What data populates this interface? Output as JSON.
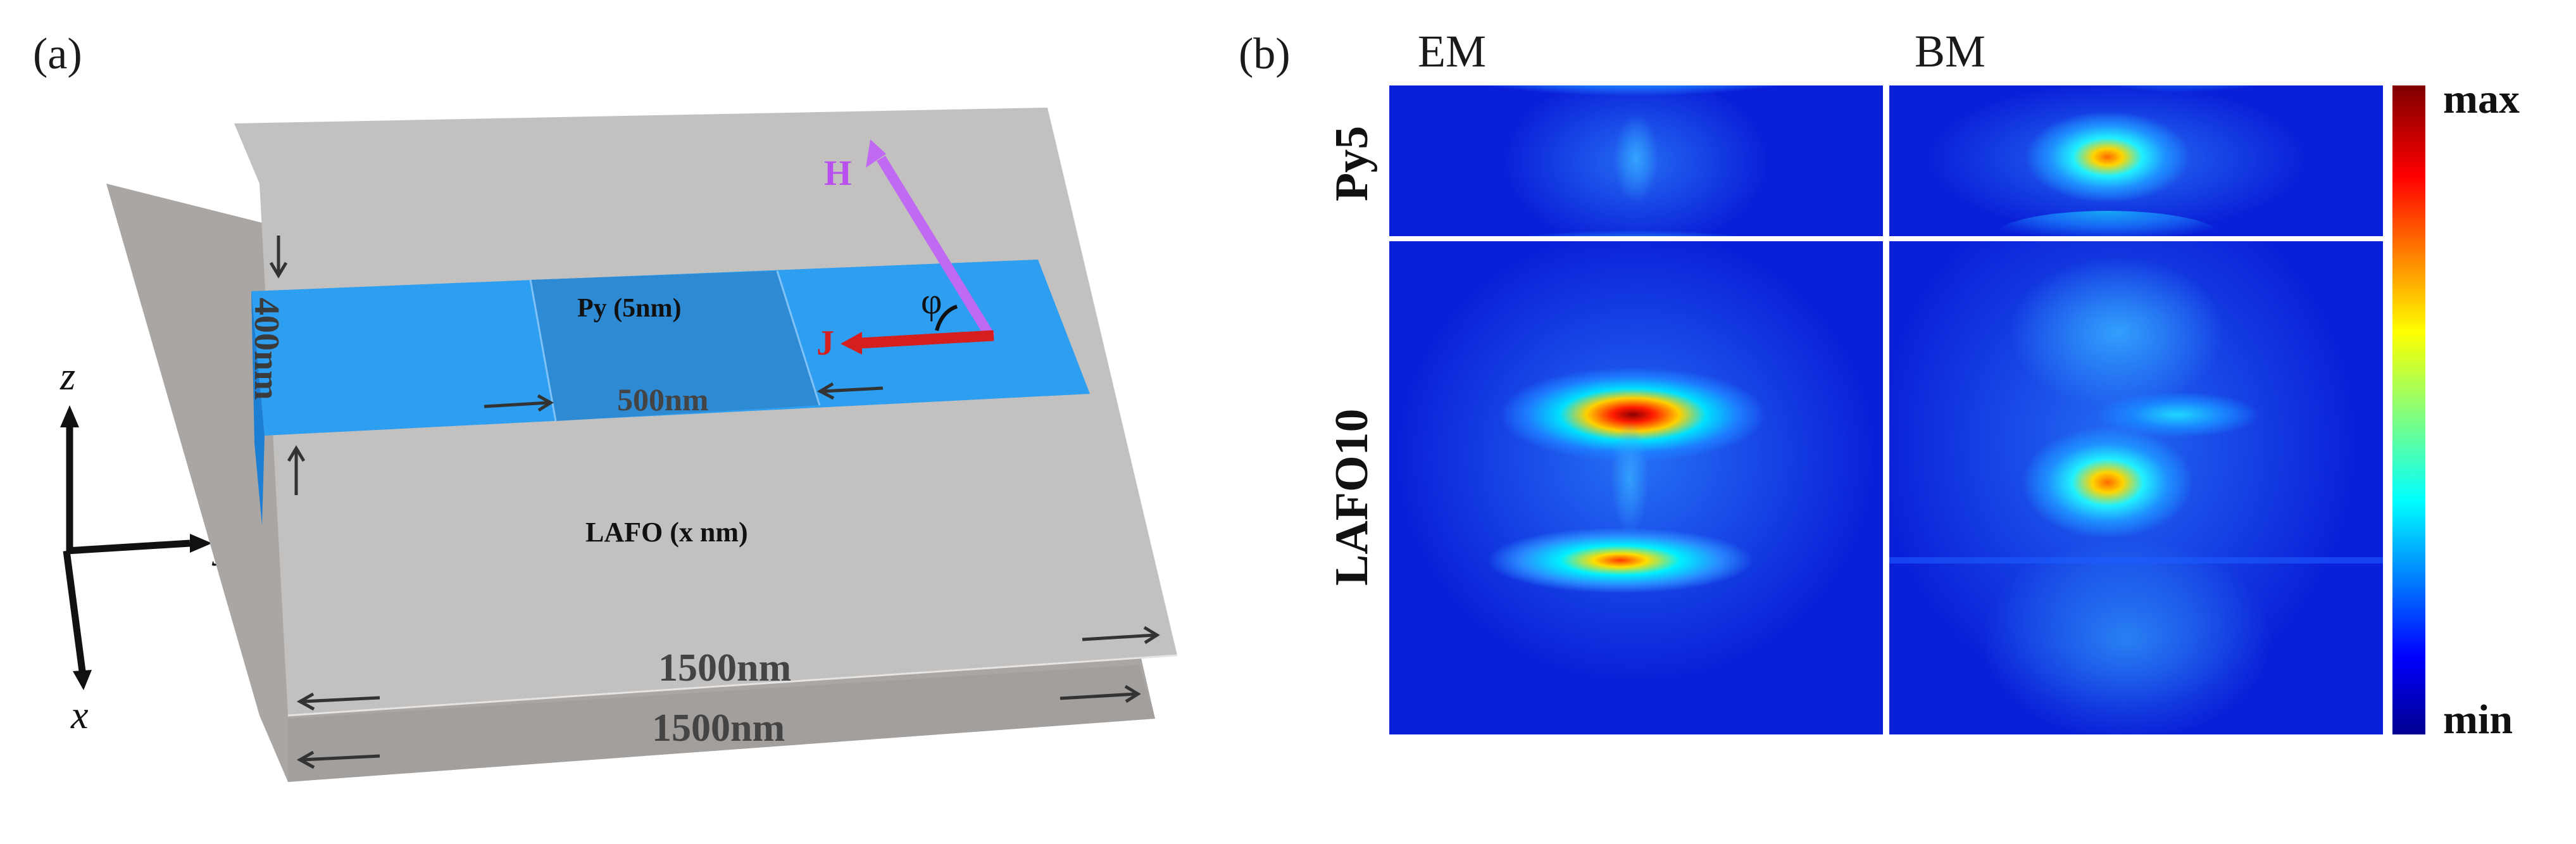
{
  "panel_a": {
    "label": "(a)",
    "axes": {
      "z": "z",
      "y": "y",
      "x": "x"
    },
    "layers": {
      "substrate_bottom_width": "1500nm",
      "substrate_top_width": "1500nm",
      "lafo_label": "LAFO (x nm)",
      "strip_width": "400nm",
      "py_label": "Py (5nm)",
      "py_length": "500nm"
    },
    "vectors": {
      "field": "H",
      "current": "J",
      "angle": "φ"
    },
    "colors": {
      "substrate": "#bcbab8",
      "strip": "#2e9ef0",
      "py_region": "#2e8ad3",
      "field_arrow": "#c069f2",
      "current_arrow": "#d51f1f"
    }
  },
  "panel_b": {
    "label": "(b)",
    "columns": [
      "EM",
      "BM"
    ],
    "rows": [
      "Py5",
      "LAFO10"
    ],
    "colorbar": {
      "max_label": "max",
      "min_label": "min",
      "colormap": "jet"
    }
  }
}
